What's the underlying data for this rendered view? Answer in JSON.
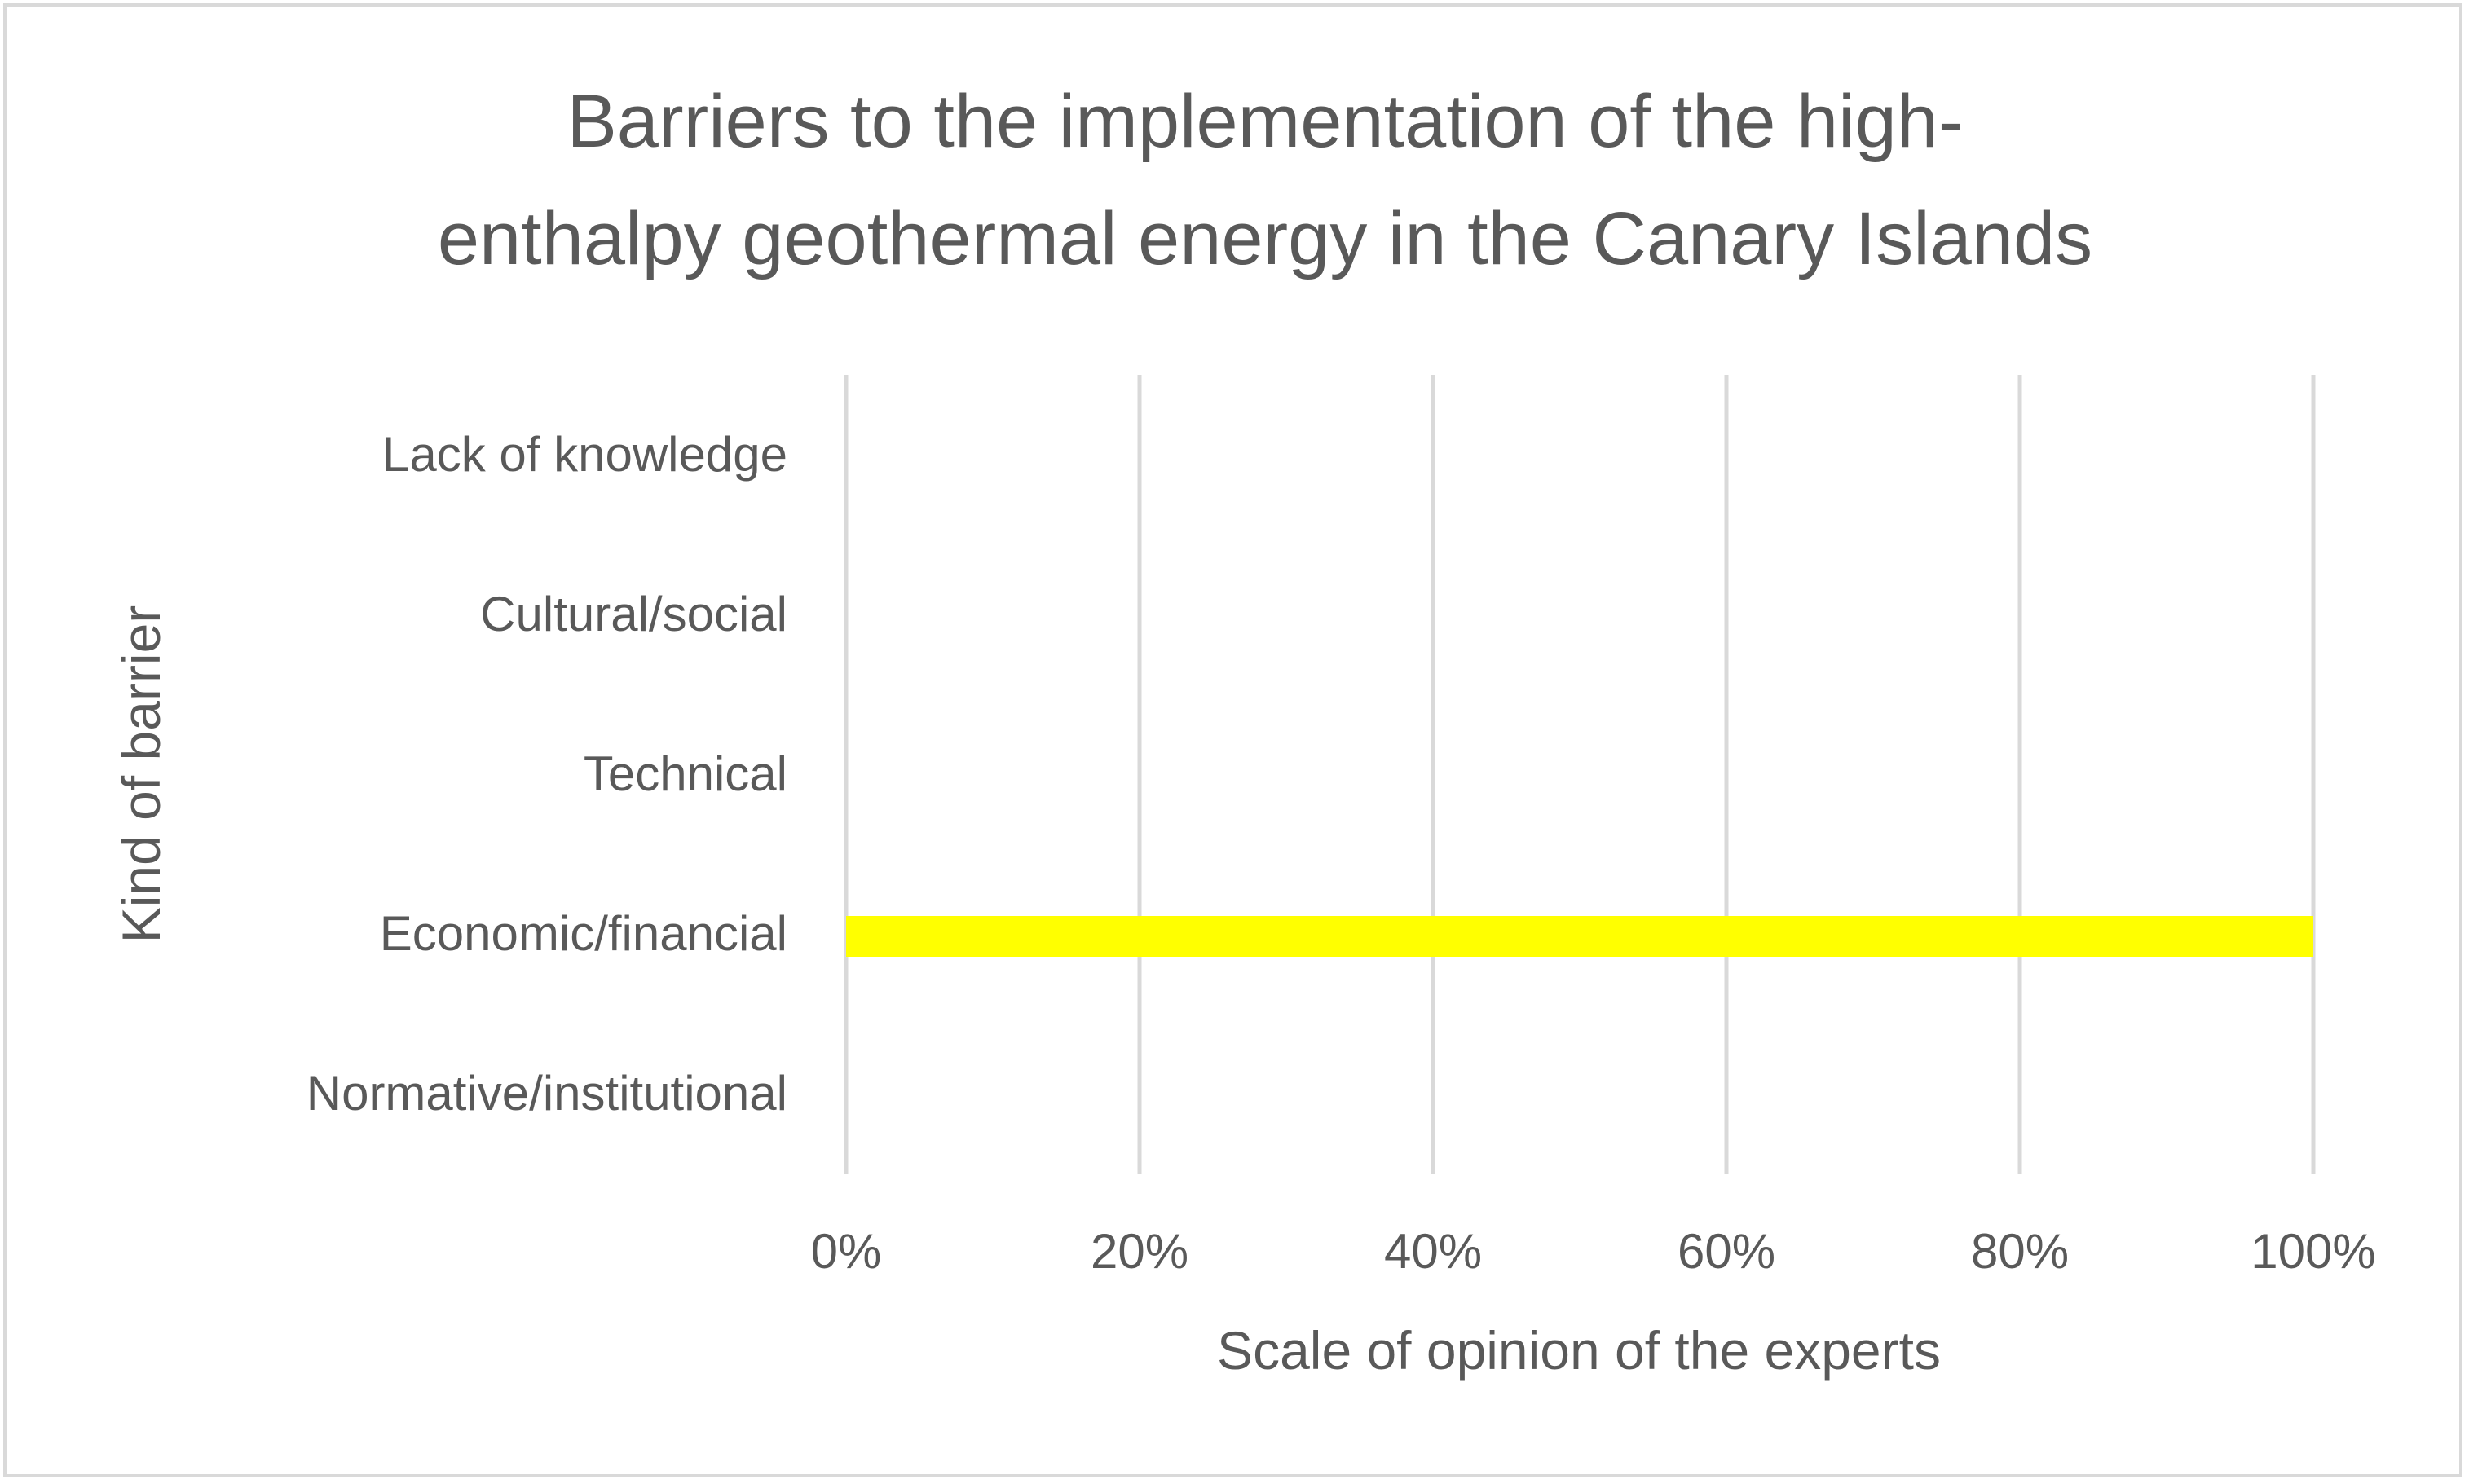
{
  "chart_data": {
    "type": "bar",
    "orientation": "horizontal",
    "title_lines": [
      "Barriers to the implementation of the high-",
      "enthalpy geothermal energy in the Canary Islands"
    ],
    "categories": [
      "Lack of knowledge",
      "Cultural/social",
      "Technical",
      "Economic/financial",
      "Normative/institutional"
    ],
    "values": [
      0,
      0,
      0,
      100,
      0
    ],
    "xlabel": "Scale of opinion of the experts",
    "ylabel": "Kind of barrier",
    "xlim": [
      0,
      100
    ],
    "xticks": [
      0,
      20,
      40,
      60,
      80,
      100
    ],
    "xtick_labels": [
      "0%",
      "20%",
      "40%",
      "60%",
      "80%",
      "100%"
    ],
    "grid": "vertical",
    "legend": "none",
    "bar_color": "#ffff00"
  }
}
